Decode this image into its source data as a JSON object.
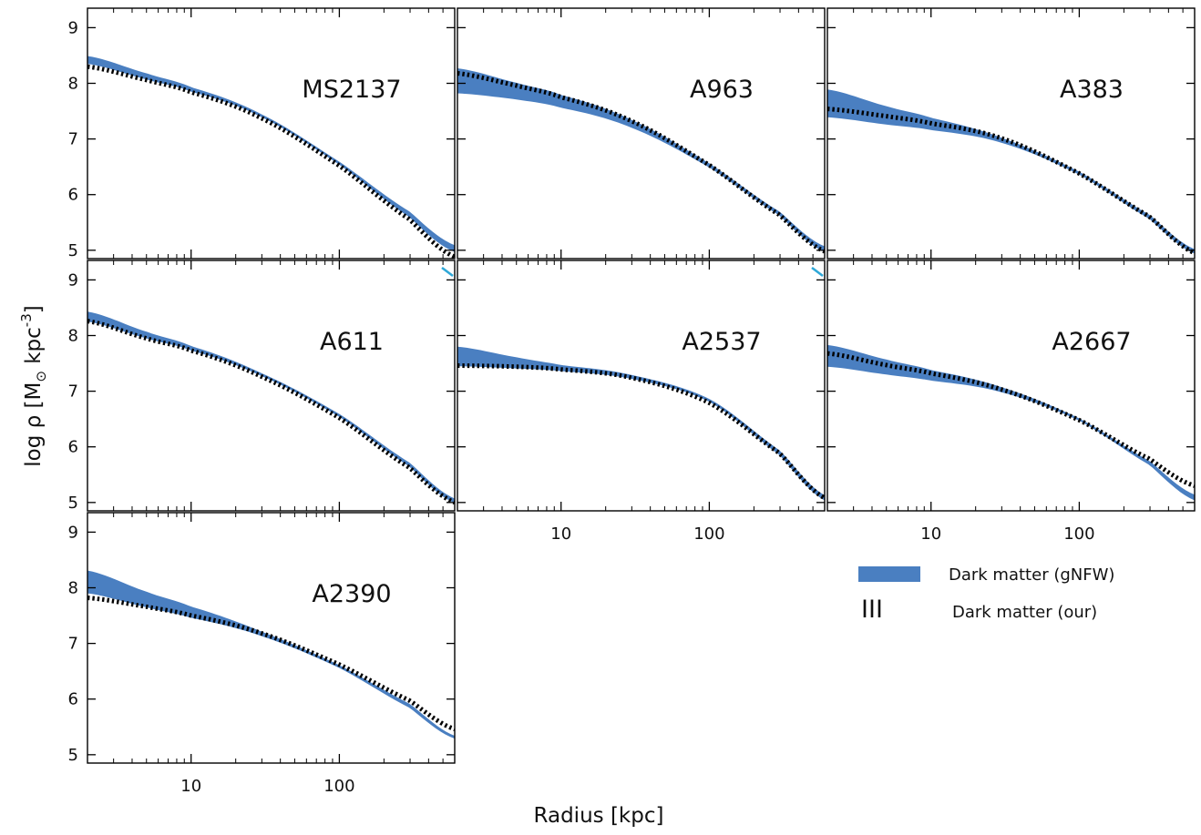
{
  "chart_data": {
    "type": "line",
    "xlabel": "Radius [kpc]",
    "ylabel": "log ρ [M⊙ kpc⁻³]",
    "ylabel_parts": {
      "main": "log ρ [M",
      "sub": "⊙",
      "mid": " kpc",
      "sup": "-3",
      "end": "]"
    },
    "xscale": "log",
    "xlim": [
      2,
      600
    ],
    "ylim": [
      4.85,
      9.35
    ],
    "x_ticks": [
      10,
      100
    ],
    "x_tick_labels": [
      "10",
      "100"
    ],
    "y_ticks": [
      5,
      6,
      7,
      8,
      9
    ],
    "y_tick_labels": [
      "5",
      "6",
      "7",
      "8",
      "9"
    ],
    "grid": false,
    "legend": {
      "placement": "lower-right (empty panel area)",
      "entries": [
        {
          "label": "Dark matter (gNFW)",
          "style": "filled band",
          "color": "#4a7fc1"
        },
        {
          "label": "Dark matter (our)",
          "style": "dashed black",
          "marker": "III",
          "color": "#000000"
        }
      ]
    },
    "colors": {
      "gnfw_band": "#4a7fc1",
      "our_dashed": "#000000",
      "cyan_tail": "#2fa8d8"
    },
    "panels": [
      {
        "title": "MS2137",
        "gnfw": {
          "x": [
            2,
            5,
            10,
            30,
            100,
            300,
            600
          ],
          "lower": [
            8.36,
            8.08,
            7.86,
            7.4,
            6.55,
            5.6,
            4.98
          ],
          "upper": [
            8.48,
            8.17,
            7.92,
            7.43,
            6.58,
            5.68,
            5.08
          ]
        },
        "our": {
          "x": [
            2,
            5,
            10,
            30,
            100,
            300,
            600
          ],
          "y": [
            8.3,
            8.06,
            7.84,
            7.37,
            6.52,
            5.55,
            4.88
          ]
        }
      },
      {
        "title": "A963",
        "gnfw": {
          "x": [
            2,
            5,
            10,
            30,
            100,
            300,
            600
          ],
          "lower": [
            7.83,
            7.72,
            7.57,
            7.21,
            6.5,
            5.63,
            4.98
          ],
          "upper": [
            8.26,
            8.0,
            7.78,
            7.33,
            6.55,
            5.68,
            5.06
          ]
        },
        "our": {
          "x": [
            2,
            5,
            10,
            30,
            100,
            300,
            600
          ],
          "y": [
            8.18,
            7.96,
            7.75,
            7.32,
            6.53,
            5.63,
            4.98
          ]
        }
      },
      {
        "title": "A383",
        "gnfw": {
          "x": [
            2,
            5,
            10,
            30,
            100,
            300,
            600
          ],
          "lower": [
            7.4,
            7.27,
            7.17,
            6.94,
            6.37,
            5.57,
            4.95
          ],
          "upper": [
            7.88,
            7.58,
            7.37,
            7.01,
            6.4,
            5.62,
            5.01
          ]
        },
        "our": {
          "x": [
            2,
            5,
            10,
            30,
            100,
            300,
            600
          ],
          "y": [
            7.54,
            7.41,
            7.28,
            7.01,
            6.38,
            5.6,
            4.95
          ]
        }
      },
      {
        "title": "A611",
        "gnfw": {
          "x": [
            2,
            5,
            10,
            30,
            100,
            300,
            600
          ],
          "lower": [
            8.26,
            7.96,
            7.74,
            7.28,
            6.55,
            5.65,
            5.0
          ],
          "upper": [
            8.42,
            8.06,
            7.8,
            7.31,
            6.58,
            5.7,
            5.06
          ]
        },
        "our": {
          "x": [
            2,
            5,
            10,
            30,
            100,
            300,
            600
          ],
          "y": [
            8.26,
            7.95,
            7.73,
            7.26,
            6.52,
            5.62,
            5.0
          ]
        }
      },
      {
        "title": "A2537",
        "gnfw": {
          "x": [
            2,
            5,
            10,
            30,
            100,
            300,
            600
          ],
          "lower": [
            7.46,
            7.42,
            7.37,
            7.23,
            6.82,
            5.86,
            5.05
          ],
          "upper": [
            7.79,
            7.6,
            7.46,
            7.28,
            6.85,
            5.92,
            5.12
          ]
        },
        "our": {
          "x": [
            2,
            5,
            10,
            30,
            100,
            300,
            600
          ],
          "y": [
            7.46,
            7.44,
            7.39,
            7.24,
            6.79,
            5.88,
            5.08
          ]
        }
      },
      {
        "title": "A2667",
        "gnfw": {
          "x": [
            2,
            5,
            10,
            30,
            100,
            300,
            600
          ],
          "lower": [
            7.45,
            7.31,
            7.2,
            6.99,
            6.48,
            5.68,
            5.05
          ],
          "upper": [
            7.82,
            7.56,
            7.37,
            7.06,
            6.5,
            5.73,
            5.13
          ]
        },
        "our": {
          "x": [
            2,
            5,
            10,
            30,
            100,
            300,
            600
          ],
          "y": [
            7.68,
            7.47,
            7.32,
            7.03,
            6.48,
            5.78,
            5.3
          ]
        }
      },
      {
        "title": "A2390",
        "gnfw": {
          "x": [
            2,
            5,
            10,
            30,
            100,
            300,
            600
          ],
          "lower": [
            7.91,
            7.66,
            7.47,
            7.14,
            6.57,
            5.85,
            5.3
          ],
          "upper": [
            8.3,
            7.92,
            7.65,
            7.2,
            6.6,
            5.9,
            5.33
          ]
        },
        "our": {
          "x": [
            2,
            5,
            10,
            30,
            100,
            300,
            600
          ],
          "y": [
            7.82,
            7.66,
            7.5,
            7.18,
            6.62,
            5.97,
            5.46
          ]
        }
      }
    ]
  }
}
